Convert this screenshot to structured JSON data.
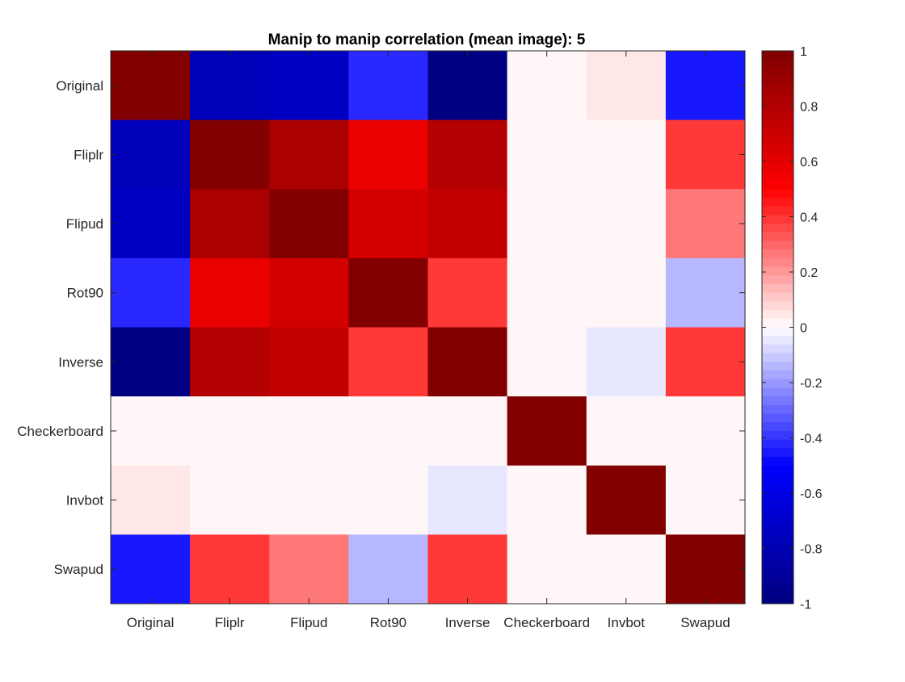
{
  "chart_data": {
    "type": "heatmap",
    "title": "Manip to manip correlation (mean image): 5",
    "xlabel": "",
    "ylabel": "",
    "x_categories": [
      "Original",
      "Fliplr",
      "Flipud",
      "Rot90",
      "Inverse",
      "Checkerboard",
      "Invbot",
      "Swapud"
    ],
    "y_categories": [
      "Original",
      "Fliplr",
      "Flipud",
      "Rot90",
      "Inverse",
      "Checkerboard",
      "Invbot",
      "Swapud"
    ],
    "values": [
      [
        1.0,
        -0.78,
        -0.72,
        -0.42,
        -1.0,
        0.0,
        0.05,
        -0.45
      ],
      [
        -0.78,
        1.0,
        0.83,
        0.57,
        0.8,
        0.0,
        0.0,
        0.38
      ],
      [
        -0.72,
        0.83,
        1.0,
        0.66,
        0.72,
        0.0,
        0.0,
        0.25
      ],
      [
        -0.42,
        0.57,
        0.66,
        1.0,
        0.38,
        0.0,
        0.0,
        -0.15
      ],
      [
        -1.0,
        0.8,
        0.72,
        0.38,
        1.0,
        0.0,
        -0.05,
        0.4
      ],
      [
        0.0,
        0.0,
        0.0,
        0.0,
        0.0,
        1.0,
        0.0,
        0.0
      ],
      [
        0.05,
        0.0,
        0.0,
        0.0,
        -0.05,
        0.0,
        1.0,
        0.0
      ],
      [
        -0.45,
        0.38,
        0.25,
        -0.15,
        0.4,
        0.0,
        0.0,
        1.0
      ]
    ],
    "colorbar": {
      "range": [
        -1,
        1
      ],
      "ticks": [
        "-1",
        "-0.8",
        "-0.6",
        "-0.4",
        "-0.2",
        "0",
        "0.2",
        "0.4",
        "0.6",
        "0.8",
        "1"
      ],
      "levels": 64,
      "colormap": "blue-white-red"
    },
    "colors": {
      "dark_blue": "#00007f",
      "blue": "#0000ff",
      "white": "#ffffff",
      "red": "#ff0000",
      "dark_red": "#7f0000"
    }
  }
}
